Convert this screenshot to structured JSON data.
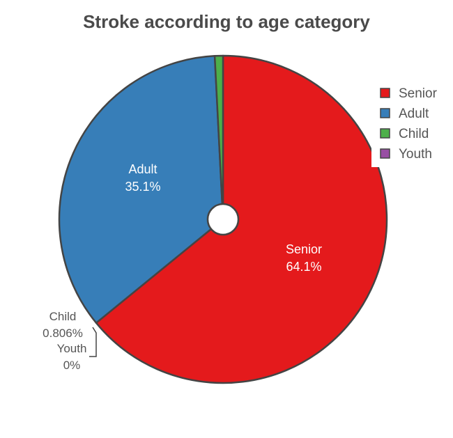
{
  "chart_data": {
    "type": "pie",
    "title": "Stroke according to age category",
    "categories": [
      "Senior",
      "Adult",
      "Child",
      "Youth"
    ],
    "values": [
      64.1,
      35.1,
      0.806,
      0
    ],
    "value_labels": [
      "64.1%",
      "35.1%",
      "0.806%",
      "0%"
    ],
    "colors": [
      "#e41a1c",
      "#377eb8",
      "#4daf4a",
      "#984ea3"
    ],
    "hole": true,
    "legend": {
      "position": "top-right",
      "entries": [
        "Senior",
        "Adult",
        "Child",
        "Youth"
      ]
    }
  }
}
